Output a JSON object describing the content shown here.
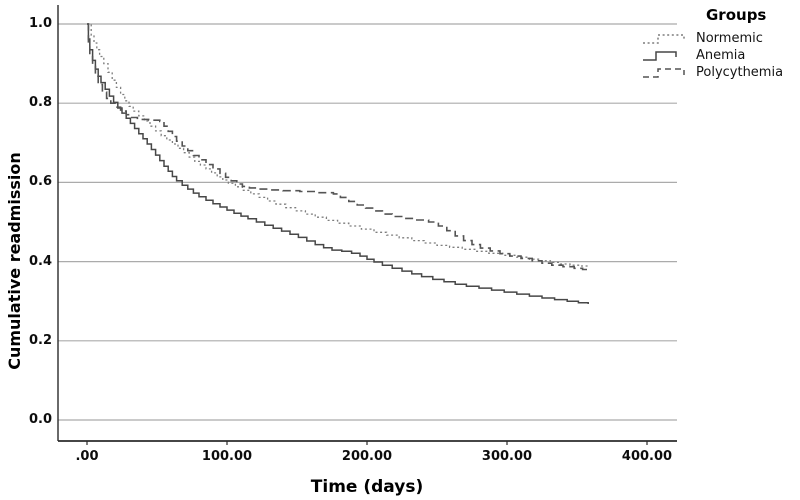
{
  "chart_data": {
    "type": "line",
    "subtype": "kaplan-meier-step-curves",
    "title": "",
    "xlabel": "Time (days)",
    "ylabel": "Cumulative readmission",
    "legend_title": "Groups",
    "legend_position": "outside-top-right",
    "grid": true,
    "grid_color": "#ababab",
    "axis_color": "#2b2b2b",
    "background_color": "#ffffff",
    "xlim": [
      0,
      421
    ],
    "ylim": [
      0.0,
      1.05
    ],
    "x_ticks": [
      0,
      100,
      200,
      300,
      400
    ],
    "x_tick_labels": [
      ".00",
      "100.00",
      "200.00",
      "300.00",
      "400.00"
    ],
    "y_ticks": [
      1.0,
      0.8,
      0.6,
      0.4,
      0.2,
      0.0
    ],
    "y_tick_labels": [
      "1.0",
      "0.8",
      "0.6",
      "0.4",
      "0.2",
      "0.0"
    ],
    "series": [
      {
        "name": "Normemic",
        "line_style": "dotted",
        "color": "#7d7d7d",
        "points": [
          [
            0,
            1.0
          ],
          [
            3,
            0.972
          ],
          [
            5,
            0.952
          ],
          [
            7,
            0.935
          ],
          [
            9,
            0.918
          ],
          [
            12,
            0.9
          ],
          [
            15,
            0.878
          ],
          [
            18,
            0.858
          ],
          [
            21,
            0.84
          ],
          [
            24,
            0.822
          ],
          [
            27,
            0.806
          ],
          [
            30,
            0.792
          ],
          [
            33,
            0.78
          ],
          [
            37,
            0.768
          ],
          [
            41,
            0.755
          ],
          [
            45,
            0.742
          ],
          [
            49,
            0.73
          ],
          [
            53,
            0.718
          ],
          [
            57,
            0.707
          ],
          [
            61,
            0.697
          ],
          [
            65,
            0.686
          ],
          [
            69,
            0.675
          ],
          [
            73,
            0.664
          ],
          [
            77,
            0.653
          ],
          [
            81,
            0.644
          ],
          [
            85,
            0.634
          ],
          [
            89,
            0.624
          ],
          [
            93,
            0.614
          ],
          [
            97,
            0.606
          ],
          [
            101,
            0.598
          ],
          [
            106,
            0.589
          ],
          [
            111,
            0.58
          ],
          [
            117,
            0.571
          ],
          [
            123,
            0.562
          ],
          [
            129,
            0.553
          ],
          [
            135,
            0.545
          ],
          [
            142,
            0.536
          ],
          [
            149,
            0.528
          ],
          [
            156,
            0.52
          ],
          [
            163,
            0.512
          ],
          [
            171,
            0.504
          ],
          [
            179,
            0.497
          ],
          [
            187,
            0.49
          ],
          [
            196,
            0.482
          ],
          [
            205,
            0.474
          ],
          [
            214,
            0.467
          ],
          [
            223,
            0.46
          ],
          [
            232,
            0.453
          ],
          [
            241,
            0.447
          ],
          [
            250,
            0.441
          ],
          [
            259,
            0.436
          ],
          [
            268,
            0.431
          ],
          [
            277,
            0.426
          ],
          [
            287,
            0.421
          ],
          [
            297,
            0.416
          ],
          [
            307,
            0.411
          ],
          [
            316,
            0.406
          ],
          [
            324,
            0.402
          ],
          [
            331,
            0.398
          ],
          [
            338,
            0.394
          ],
          [
            345,
            0.391
          ],
          [
            352,
            0.389
          ],
          [
            358,
            0.387
          ]
        ]
      },
      {
        "name": "Anemia",
        "line_style": "solid",
        "color": "#474747",
        "points": [
          [
            0,
            1.0
          ],
          [
            1,
            0.962
          ],
          [
            2,
            0.935
          ],
          [
            4,
            0.908
          ],
          [
            6,
            0.886
          ],
          [
            8,
            0.868
          ],
          [
            10,
            0.852
          ],
          [
            13,
            0.835
          ],
          [
            16,
            0.818
          ],
          [
            19,
            0.802
          ],
          [
            22,
            0.788
          ],
          [
            25,
            0.775
          ],
          [
            28,
            0.762
          ],
          [
            31,
            0.749
          ],
          [
            34,
            0.736
          ],
          [
            37,
            0.723
          ],
          [
            40,
            0.71
          ],
          [
            43,
            0.697
          ],
          [
            46,
            0.683
          ],
          [
            49,
            0.669
          ],
          [
            52,
            0.655
          ],
          [
            55,
            0.641
          ],
          [
            58,
            0.628
          ],
          [
            61,
            0.615
          ],
          [
            64,
            0.604
          ],
          [
            68,
            0.593
          ],
          [
            72,
            0.583
          ],
          [
            76,
            0.573
          ],
          [
            80,
            0.564
          ],
          [
            85,
            0.555
          ],
          [
            90,
            0.546
          ],
          [
            95,
            0.538
          ],
          [
            100,
            0.53
          ],
          [
            105,
            0.522
          ],
          [
            110,
            0.515
          ],
          [
            115,
            0.508
          ],
          [
            121,
            0.5
          ],
          [
            127,
            0.492
          ],
          [
            133,
            0.484
          ],
          [
            139,
            0.477
          ],
          [
            145,
            0.469
          ],
          [
            151,
            0.461
          ],
          [
            157,
            0.452
          ],
          [
            163,
            0.443
          ],
          [
            169,
            0.435
          ],
          [
            175,
            0.429
          ],
          [
            182,
            0.426
          ],
          [
            189,
            0.421
          ],
          [
            195,
            0.414
          ],
          [
            200,
            0.406
          ],
          [
            205,
            0.399
          ],
          [
            211,
            0.391
          ],
          [
            218,
            0.383
          ],
          [
            225,
            0.376
          ],
          [
            232,
            0.369
          ],
          [
            239,
            0.362
          ],
          [
            247,
            0.355
          ],
          [
            255,
            0.349
          ],
          [
            263,
            0.343
          ],
          [
            271,
            0.338
          ],
          [
            280,
            0.333
          ],
          [
            289,
            0.328
          ],
          [
            298,
            0.323
          ],
          [
            307,
            0.318
          ],
          [
            316,
            0.313
          ],
          [
            325,
            0.308
          ],
          [
            334,
            0.304
          ],
          [
            343,
            0.3
          ],
          [
            351,
            0.296
          ],
          [
            358,
            0.293
          ]
        ]
      },
      {
        "name": "Polycythemia",
        "line_style": "dashed",
        "color": "#545454",
        "points": [
          [
            0,
            1.0
          ],
          [
            1,
            0.955
          ],
          [
            2,
            0.922
          ],
          [
            4,
            0.893
          ],
          [
            6,
            0.868
          ],
          [
            8,
            0.847
          ],
          [
            11,
            0.828
          ],
          [
            14,
            0.812
          ],
          [
            17,
            0.8
          ],
          [
            20,
            0.79
          ],
          [
            24,
            0.78
          ],
          [
            28,
            0.771
          ],
          [
            32,
            0.764
          ],
          [
            36,
            0.759
          ],
          [
            44,
            0.757
          ],
          [
            52,
            0.754
          ],
          [
            55,
            0.742
          ],
          [
            58,
            0.729
          ],
          [
            61,
            0.716
          ],
          [
            64,
            0.704
          ],
          [
            68,
            0.692
          ],
          [
            72,
            0.68
          ],
          [
            76,
            0.668
          ],
          [
            80,
            0.657
          ],
          [
            85,
            0.645
          ],
          [
            90,
            0.634
          ],
          [
            95,
            0.623
          ],
          [
            99,
            0.613
          ],
          [
            103,
            0.604
          ],
          [
            107,
            0.596
          ],
          [
            111,
            0.59
          ],
          [
            116,
            0.586
          ],
          [
            122,
            0.583
          ],
          [
            130,
            0.581
          ],
          [
            140,
            0.579
          ],
          [
            152,
            0.577
          ],
          [
            164,
            0.574
          ],
          [
            176,
            0.571
          ],
          [
            181,
            0.562
          ],
          [
            187,
            0.552
          ],
          [
            193,
            0.543
          ],
          [
            199,
            0.535
          ],
          [
            205,
            0.528
          ],
          [
            211,
            0.52
          ],
          [
            218,
            0.514
          ],
          [
            226,
            0.509
          ],
          [
            235,
            0.505
          ],
          [
            244,
            0.5
          ],
          [
            251,
            0.49
          ],
          [
            257,
            0.478
          ],
          [
            263,
            0.465
          ],
          [
            269,
            0.453
          ],
          [
            275,
            0.443
          ],
          [
            281,
            0.434
          ],
          [
            288,
            0.427
          ],
          [
            295,
            0.42
          ],
          [
            302,
            0.414
          ],
          [
            310,
            0.408
          ],
          [
            318,
            0.402
          ],
          [
            325,
            0.396
          ],
          [
            332,
            0.391
          ],
          [
            340,
            0.387
          ],
          [
            348,
            0.383
          ],
          [
            354,
            0.38
          ],
          [
            358,
            0.378
          ]
        ]
      }
    ]
  }
}
